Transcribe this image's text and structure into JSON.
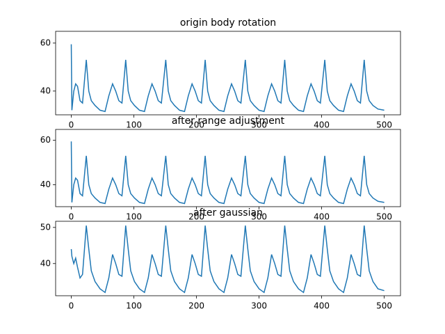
{
  "chart_data": [
    {
      "type": "line",
      "title": "origin body rotation",
      "color": "#1f77b4",
      "x": [
        0,
        1,
        4,
        7,
        10,
        14,
        18,
        24,
        28,
        32,
        38,
        46,
        54,
        60,
        66,
        71,
        76,
        81,
        87,
        91,
        95,
        101,
        109,
        117,
        123,
        129,
        134,
        139,
        144,
        151,
        155,
        159,
        165,
        173,
        181,
        187,
        193,
        198,
        203,
        208,
        214,
        218,
        222,
        228,
        236,
        244,
        250,
        256,
        261,
        266,
        271,
        278,
        282,
        286,
        292,
        300,
        308,
        314,
        320,
        325,
        330,
        335,
        341,
        345,
        349,
        355,
        363,
        371,
        377,
        383,
        388,
        393,
        398,
        405,
        409,
        413,
        419,
        427,
        435,
        441,
        447,
        452,
        457,
        462,
        468,
        472,
        476,
        482,
        490,
        500
      ],
      "values": [
        59.5,
        32,
        40,
        43,
        42,
        36,
        35,
        53,
        40,
        36,
        34,
        32,
        31.5,
        38,
        43,
        40,
        36,
        35,
        53,
        40,
        36,
        34,
        32,
        31.5,
        38,
        43,
        40,
        36,
        35,
        53,
        40,
        36,
        34,
        32,
        31.5,
        38,
        43,
        40,
        36,
        35,
        53,
        40,
        36,
        34,
        32,
        31.5,
        38,
        43,
        40,
        36,
        35,
        53,
        40,
        36,
        34,
        32,
        31.5,
        38,
        43,
        40,
        36,
        35,
        53,
        40,
        36,
        34,
        32,
        31.5,
        38,
        43,
        40,
        36,
        35,
        53,
        40,
        36,
        34,
        32,
        31.5,
        38,
        43,
        40,
        36,
        35,
        53,
        40,
        36,
        34,
        32.5,
        32
      ],
      "xlim": [
        -25,
        526
      ],
      "ylim": [
        30.1,
        64.9
      ],
      "xticks": [
        0,
        100,
        200,
        300,
        400,
        500
      ],
      "yticks": [
        40,
        60
      ]
    },
    {
      "type": "line",
      "title": "after range adjustment",
      "color": "#1f77b4",
      "x": [
        0,
        1,
        4,
        7,
        10,
        14,
        18,
        24,
        28,
        32,
        38,
        46,
        54,
        60,
        66,
        71,
        76,
        81,
        87,
        91,
        95,
        101,
        109,
        117,
        123,
        129,
        134,
        139,
        144,
        151,
        155,
        159,
        165,
        173,
        181,
        187,
        193,
        198,
        203,
        208,
        214,
        218,
        222,
        228,
        236,
        244,
        250,
        256,
        261,
        266,
        271,
        278,
        282,
        286,
        292,
        300,
        308,
        314,
        320,
        325,
        330,
        335,
        341,
        345,
        349,
        355,
        363,
        371,
        377,
        383,
        388,
        393,
        398,
        405,
        409,
        413,
        419,
        427,
        435,
        441,
        447,
        452,
        457,
        462,
        468,
        472,
        476,
        482,
        490,
        500
      ],
      "values": [
        59.5,
        32,
        40,
        43,
        42,
        36,
        35,
        53,
        40,
        36,
        34,
        32,
        31.5,
        38,
        43,
        40,
        36,
        35,
        53,
        40,
        36,
        34,
        32,
        31.5,
        38,
        43,
        40,
        36,
        35,
        53,
        40,
        36,
        34,
        32,
        31.5,
        38,
        43,
        40,
        36,
        35,
        53,
        40,
        36,
        34,
        32,
        31.5,
        38,
        43,
        40,
        36,
        35,
        53,
        40,
        36,
        34,
        32,
        31.5,
        38,
        43,
        40,
        36,
        35,
        53,
        40,
        36,
        34,
        32,
        31.5,
        38,
        43,
        40,
        36,
        35,
        53,
        40,
        36,
        34,
        32,
        31.5,
        38,
        43,
        40,
        36,
        35,
        53,
        40,
        36,
        34,
        32.5,
        32
      ],
      "xlim": [
        -25,
        526
      ],
      "ylim": [
        30.1,
        64.9
      ],
      "xticks": [
        0,
        100,
        200,
        300,
        400,
        500
      ],
      "yticks": [
        40,
        60
      ]
    },
    {
      "type": "line",
      "title": "after gaussian",
      "color": "#1f77b4",
      "x": [
        0,
        1,
        4,
        7,
        10,
        14,
        18,
        24,
        28,
        32,
        38,
        46,
        54,
        60,
        66,
        71,
        76,
        81,
        87,
        91,
        95,
        101,
        109,
        117,
        123,
        129,
        134,
        139,
        144,
        151,
        155,
        159,
        165,
        173,
        181,
        187,
        193,
        198,
        203,
        208,
        214,
        218,
        222,
        228,
        236,
        244,
        250,
        256,
        261,
        266,
        271,
        278,
        282,
        286,
        292,
        300,
        308,
        314,
        320,
        325,
        330,
        335,
        341,
        345,
        349,
        355,
        363,
        371,
        377,
        383,
        388,
        393,
        398,
        405,
        409,
        413,
        419,
        427,
        435,
        441,
        447,
        452,
        457,
        462,
        468,
        472,
        476,
        482,
        490,
        500
      ],
      "values": [
        44,
        42,
        40,
        41.5,
        39,
        36,
        37,
        50.5,
        44,
        38,
        35,
        33,
        32,
        36,
        42.5,
        40,
        37,
        36.5,
        50.5,
        44,
        38,
        35,
        33,
        32,
        36,
        42.5,
        40,
        37,
        36.5,
        50.5,
        44,
        38,
        35,
        33,
        32,
        36,
        42.5,
        40,
        37,
        36.5,
        50.5,
        44,
        38,
        35,
        33,
        32,
        36,
        42.5,
        40,
        37,
        36.5,
        50.5,
        44,
        38,
        35,
        33,
        32,
        36,
        42.5,
        40,
        37,
        36.5,
        50.5,
        44,
        38,
        35,
        33,
        32,
        36,
        42.5,
        40,
        37,
        36.5,
        50.5,
        44,
        38,
        35,
        33,
        32,
        36,
        42.5,
        40,
        37,
        36.5,
        50.5,
        44,
        38,
        35,
        33,
        32.5
      ],
      "xlim": [
        -25,
        526
      ],
      "ylim": [
        31.1,
        51.7
      ],
      "xticks": [
        0,
        100,
        200,
        300,
        400,
        500
      ],
      "yticks": [
        40,
        50
      ]
    }
  ]
}
